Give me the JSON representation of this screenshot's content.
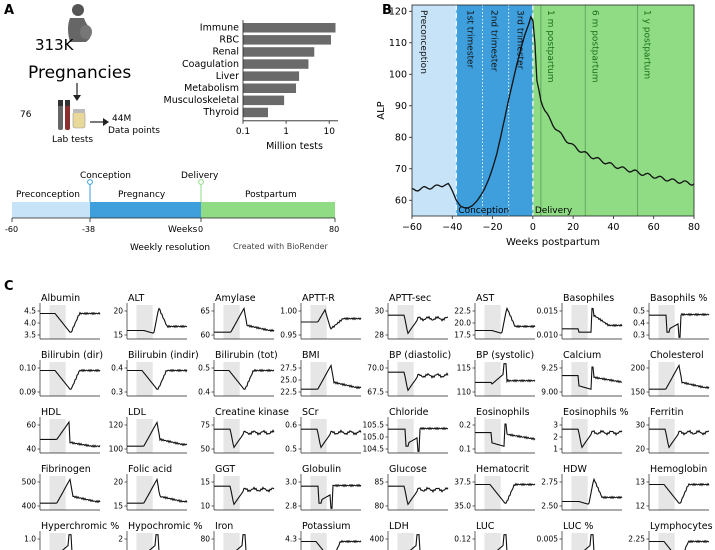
{
  "colors": {
    "preconception": "#c6e3f7",
    "pregnancy": "#3e9fdc",
    "postpartum": "#8fdc85",
    "bar": "#6a6a6a",
    "line": "#111111",
    "mini_shade": "#e6e6e6"
  },
  "panel_a": {
    "label": "A",
    "count": "313K",
    "count_word": "Pregnancies",
    "num_tests": "76",
    "lab_tests": "Lab tests",
    "data_points_value": "44M",
    "data_points_label": "Data points",
    "credit": "Created with BioRender",
    "timeline": {
      "conception": "Conception",
      "delivery": "Delivery",
      "segments": [
        "Preconception",
        "Pregnancy",
        "Postpartum"
      ],
      "axis_label": "Weeks",
      "resolution": "Weekly resolution",
      "ticks": [
        "-60",
        "-38",
        "0",
        "80"
      ]
    }
  },
  "chart_data": [
    {
      "id": "test_counts",
      "type": "bar",
      "orientation": "horizontal",
      "xscale": "log",
      "xlabel": "Million tests",
      "categories": [
        "Immune",
        "RBC",
        "Renal",
        "Coagulation",
        "Liver",
        "Metabolism",
        "Musculoskeletal",
        "Thyroid"
      ],
      "values": [
        14,
        11,
        4.5,
        3.3,
        2.0,
        1.7,
        0.9,
        0.38
      ],
      "xlim": [
        0.1,
        16
      ],
      "xtick_labels": [
        "0.1",
        "1",
        "10"
      ],
      "xticks": [
        0.1,
        1,
        10
      ]
    },
    {
      "id": "alp_trajectory",
      "type": "line",
      "panel_label": "B",
      "xlabel": "Weeks postpartum",
      "ylabel": "ALP",
      "xlim": [
        -60,
        80
      ],
      "ylim": [
        55,
        122
      ],
      "xticks": [
        -60,
        -40,
        -20,
        0,
        20,
        40,
        60,
        80
      ],
      "xtick_labels": [
        "−60",
        "−40",
        "−20",
        "0",
        "20",
        "40",
        "60",
        "80"
      ],
      "yticks": [
        60,
        70,
        80,
        90,
        100,
        110,
        120
      ],
      "ytick_labels": [
        "60",
        "70",
        "80",
        "90",
        "100",
        "110",
        "120"
      ],
      "regions": [
        {
          "name": "Preconception",
          "from": -60,
          "to": -38
        },
        {
          "name": "Pregnancy",
          "from": -38,
          "to": 0
        },
        {
          "name": "Postpartum",
          "from": 0,
          "to": 80
        }
      ],
      "vlines": [
        {
          "x": -38,
          "style": "dashed-white"
        },
        {
          "x": -25,
          "style": "dotted-white"
        },
        {
          "x": -12,
          "style": "dotted-white"
        },
        {
          "x": 0,
          "style": "dashed-white"
        },
        {
          "x": 4,
          "style": "solid-green"
        },
        {
          "x": 26,
          "style": "solid-green"
        },
        {
          "x": 52,
          "style": "solid-green"
        }
      ],
      "labels": [
        {
          "text": "Preconception",
          "x": -57,
          "color": "#111111"
        },
        {
          "text": "1st trimester",
          "x": -34,
          "color": "#111111"
        },
        {
          "text": "2nd trimester",
          "x": -22,
          "color": "#111111"
        },
        {
          "text": "3rd trimester",
          "x": -9,
          "color": "#111111"
        },
        {
          "text": "1 m postpartum",
          "x": 6,
          "color": "#1a6e1a"
        },
        {
          "text": "6 m postpartum",
          "x": 28,
          "color": "#1a6e1a"
        },
        {
          "text": "1 y postpartum",
          "x": 54,
          "color": "#1a6e1a"
        }
      ],
      "bottom_labels": [
        {
          "text": "Conception",
          "x": -38
        },
        {
          "text": "Delivery",
          "x": 0
        }
      ],
      "points": [
        [
          -60,
          63.2
        ],
        [
          -56,
          63.6
        ],
        [
          -52,
          64.0
        ],
        [
          -48,
          64.3
        ],
        [
          -44,
          65.0
        ],
        [
          -42,
          64.8
        ],
        [
          -40,
          63.0
        ],
        [
          -38,
          60.0
        ],
        [
          -36,
          58.2
        ],
        [
          -34,
          57.6
        ],
        [
          -32,
          57.6
        ],
        [
          -30,
          58.3
        ],
        [
          -28,
          59.6
        ],
        [
          -26,
          61.4
        ],
        [
          -24,
          63.6
        ],
        [
          -22,
          66.5
        ],
        [
          -20,
          70.2
        ],
        [
          -18,
          74.5
        ],
        [
          -16,
          80.0
        ],
        [
          -14,
          86.0
        ],
        [
          -12,
          92.0
        ],
        [
          -10,
          97.5
        ],
        [
          -8,
          103.0
        ],
        [
          -6,
          108.0
        ],
        [
          -4,
          112.5
        ],
        [
          -2,
          116.0
        ],
        [
          -1,
          118.2
        ],
        [
          0,
          117.0
        ],
        [
          1,
          110.0
        ],
        [
          2,
          98.0
        ],
        [
          4,
          92.0
        ],
        [
          6,
          88.5
        ],
        [
          8,
          86.0
        ],
        [
          10,
          84.0
        ],
        [
          15,
          80.0
        ],
        [
          20,
          77.2
        ],
        [
          25,
          75.2
        ],
        [
          30,
          73.6
        ],
        [
          35,
          72.3
        ],
        [
          40,
          71.0
        ],
        [
          45,
          70.0
        ],
        [
          50,
          69.2
        ],
        [
          55,
          68.3
        ],
        [
          60,
          67.6
        ],
        [
          65,
          66.8
        ],
        [
          70,
          66.2
        ],
        [
          75,
          65.7
        ],
        [
          80,
          65.2
        ]
      ]
    },
    {
      "id": "lab_trajectories",
      "type": "line",
      "panel_label": "C",
      "shared_x": "weeks postpartum, -60 to 80",
      "shaded_region": "pregnancy (-38 to 0)",
      "panels": [
        {
          "title": "Albumin",
          "yticks": [
            "4.5",
            "4.0",
            "3.5"
          ],
          "shape": "dip",
          "big": true
        },
        {
          "title": "ALT",
          "yticks": [
            "20",
            "15"
          ],
          "shape": "late_peak",
          "big": false
        },
        {
          "title": "Amylase",
          "yticks": [
            "65",
            "60"
          ],
          "shape": "rise_peak",
          "big": false
        },
        {
          "title": "APTT-R",
          "yticks": [
            "1.00",
            "0.95"
          ],
          "shape": "bump_down",
          "big": false
        },
        {
          "title": "APTT-sec",
          "yticks": [
            "30",
            "28"
          ],
          "shape": "dip_recover",
          "big": false
        },
        {
          "title": "AST",
          "yticks": [
            "22.5",
            "20.0",
            "17.5"
          ],
          "shape": "late_peak",
          "big": false
        },
        {
          "title": "Basophiles",
          "yticks": [
            "0.015",
            "0.010"
          ],
          "shape": "peak_decay",
          "big": false
        },
        {
          "title": "Basophils %",
          "yticks": [
            "0.5",
            "0.4",
            "0.3"
          ],
          "shape": "dip_sharp",
          "big": false
        },
        {
          "title": "Bilirubin (dir)",
          "yticks": [
            "0.10",
            "0.09"
          ],
          "shape": "dip",
          "big": false
        },
        {
          "title": "Bilirubin (indir)",
          "yticks": [
            "0.4",
            "0.3"
          ],
          "shape": "dip",
          "big": false
        },
        {
          "title": "Bilirubin (tot)",
          "yticks": [
            "0.5",
            "0.4"
          ],
          "shape": "dip",
          "big": false
        },
        {
          "title": "BMI",
          "yticks": [
            "27.5",
            "25.0",
            "22.5"
          ],
          "shape": "rise_peak",
          "big": true
        },
        {
          "title": "BP (diastolic)",
          "yticks": [
            "70.0",
            "67.5"
          ],
          "shape": "dip_recover",
          "big": false
        },
        {
          "title": "BP (systolic)",
          "yticks": [
            "115",
            "110"
          ],
          "shape": "spike",
          "big": false
        },
        {
          "title": "Calcium",
          "yticks": [
            "9.25",
            "9.00"
          ],
          "shape": "dip_spike",
          "big": false
        },
        {
          "title": "Cholesterol",
          "yticks": [
            "200",
            "150"
          ],
          "shape": "rise_peak",
          "big": true
        },
        {
          "title": "HDL",
          "yticks": [
            "60",
            "40"
          ],
          "shape": "rise_drop",
          "big": false
        },
        {
          "title": "LDL",
          "yticks": [
            "120",
            "100"
          ],
          "shape": "rise_peak",
          "big": false
        },
        {
          "title": "Creatine kinase",
          "yticks": [
            "75",
            "50"
          ],
          "shape": "dip_recover",
          "big": false
        },
        {
          "title": "SCr",
          "yticks": [
            "0.6",
            "0.5"
          ],
          "shape": "dip_recover",
          "big": false
        },
        {
          "title": "Chloride",
          "yticks": [
            "105.5",
            "105.0",
            "104.5"
          ],
          "shape": "dip_sharp",
          "big": false
        },
        {
          "title": "Eosinophils",
          "yticks": [
            "0.2",
            "0.1"
          ],
          "shape": "dip_spike",
          "big": false
        },
        {
          "title": "Eosinophils %",
          "yticks": [
            "3",
            "2",
            "1"
          ],
          "shape": "dip_recover",
          "big": false
        },
        {
          "title": "Ferritin",
          "yticks": [
            "30",
            "20"
          ],
          "shape": "dip_recover",
          "big": false
        },
        {
          "title": "Fibrinogen",
          "yticks": [
            "500",
            "400"
          ],
          "shape": "rise_peak",
          "big": false
        },
        {
          "title": "Folic acid",
          "yticks": [
            "20",
            "15"
          ],
          "shape": "rise_peak",
          "big": false
        },
        {
          "title": "GGT",
          "yticks": [
            "15",
            "10"
          ],
          "shape": "dip_recover",
          "big": false
        },
        {
          "title": "Globulin",
          "yticks": [
            "3.0",
            "2.8"
          ],
          "shape": "dip_sharp",
          "big": false
        },
        {
          "title": "Glucose",
          "yticks": [
            "85",
            "80"
          ],
          "shape": "dip_recover",
          "big": false
        },
        {
          "title": "Hematocrit",
          "yticks": [
            "37.5",
            "35.0"
          ],
          "shape": "dip",
          "big": false
        },
        {
          "title": "HDW",
          "yticks": [
            "2.75",
            "2.50"
          ],
          "shape": "late_peak",
          "big": false
        },
        {
          "title": "Hemoglobin",
          "yticks": [
            "13",
            "12"
          ],
          "shape": "dip",
          "big": false
        },
        {
          "title": "Hyperchromic %",
          "yticks": [
            "1.0"
          ],
          "shape": "spike",
          "big": false
        },
        {
          "title": "Hypochromic %",
          "yticks": [
            "2",
            "1"
          ],
          "shape": "spike",
          "big": false
        },
        {
          "title": "Iron",
          "yticks": [
            "80"
          ],
          "shape": "spike",
          "big": false
        },
        {
          "title": "Potassium",
          "yticks": [
            "4.3"
          ],
          "shape": "dip",
          "big": false
        },
        {
          "title": "LDH",
          "yticks": [
            "400"
          ],
          "shape": "spike",
          "big": false
        },
        {
          "title": "LUC",
          "yticks": [
            "0.12"
          ],
          "shape": "spike",
          "big": false
        },
        {
          "title": "LUC %",
          "yticks": [
            "0.005"
          ],
          "shape": "spike",
          "big": false
        },
        {
          "title": "Lymphocytes",
          "yticks": [
            "2.25"
          ],
          "shape": "dip",
          "big": false
        }
      ]
    }
  ]
}
